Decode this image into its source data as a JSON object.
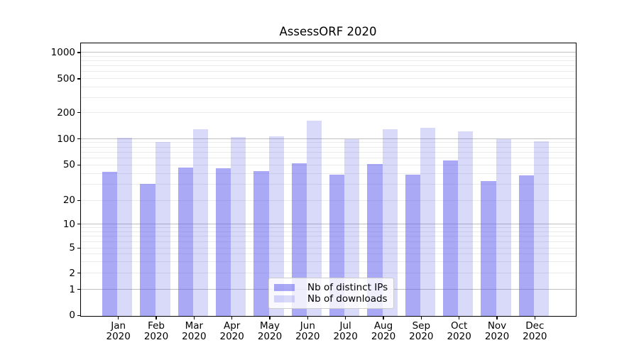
{
  "chart_data": {
    "type": "bar",
    "title": "AssessORF 2020",
    "categories": [
      "Jan",
      "Feb",
      "Mar",
      "Apr",
      "May",
      "Jun",
      "Jul",
      "Aug",
      "Sep",
      "Oct",
      "Nov",
      "Dec"
    ],
    "category_year": "2020",
    "series": [
      {
        "name": "Nb of distinct IPs",
        "fill": "rgba(90,90,235,0.52)",
        "hex_on_white": "#a9a9f5",
        "values": [
          42,
          31,
          47,
          46,
          43,
          52,
          39,
          51,
          39,
          57,
          33,
          38
        ]
      },
      {
        "name": "Nb of downloads",
        "fill": "rgba(90,90,235,0.23)",
        "hex_on_white": "#d9d9f9",
        "values": [
          104,
          93,
          129,
          105,
          107,
          163,
          99,
          130,
          135,
          122,
          99,
          94
        ]
      }
    ],
    "xlabel": "",
    "ylabel": "",
    "yscale": "log (linear segment below 1, includes 0)",
    "ytick_labels": [
      "1000",
      "500",
      "200",
      "100",
      "50",
      "20",
      "10",
      "5",
      "2",
      "1",
      "0"
    ],
    "ytick_values": [
      1000,
      500,
      200,
      100,
      50,
      20,
      10,
      5,
      2,
      1,
      0
    ],
    "ylim": [
      0,
      1286
    ],
    "grid": "on (minor light gray, major powers of 10 darker)",
    "legend_position": "lower center",
    "colors": {
      "grid_minor": "#ebebeb",
      "grid_major": "#c0c0c0",
      "spine": "#000000",
      "legend_border": "#cccccc"
    }
  }
}
